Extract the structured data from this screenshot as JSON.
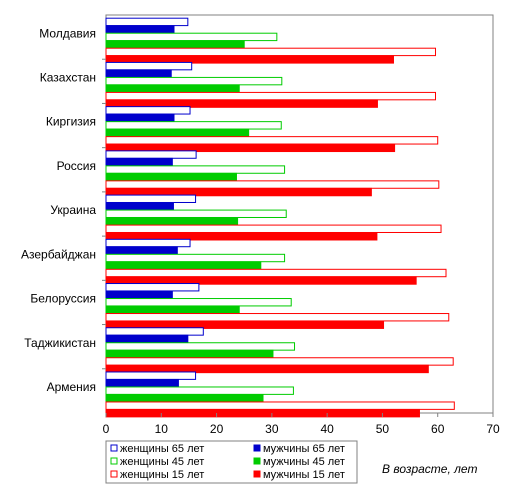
{
  "chart_data": {
    "type": "bar",
    "orientation": "horizontal",
    "categories": [
      "Молдавия",
      "Казахстан",
      "Киргизия",
      "Россия",
      "Украина",
      "Азербайджан",
      "Белоруссия",
      "Таджикистан",
      "Армения"
    ],
    "series": [
      {
        "name": "женщины 65 лет",
        "values": [
          14.8,
          15.5,
          15.2,
          16.3,
          16.2,
          15.2,
          16.8,
          17.6,
          16.2
        ],
        "color": "#0000cc",
        "filled": false
      },
      {
        "name": "мужчины 65 лет",
        "values": [
          12.3,
          11.8,
          12.3,
          12.0,
          12.2,
          12.9,
          12.0,
          14.8,
          13.1
        ],
        "color": "#0000cc",
        "filled": true
      },
      {
        "name": "женщины 45 лет",
        "values": [
          30.9,
          31.8,
          31.7,
          32.3,
          32.6,
          32.3,
          33.5,
          34.1,
          33.9
        ],
        "color": "#00cc00",
        "filled": false
      },
      {
        "name": "мужчины 45 лет",
        "values": [
          25.0,
          24.1,
          25.8,
          23.6,
          23.8,
          28.0,
          24.1,
          30.2,
          28.4
        ],
        "color": "#00cc00",
        "filled": true
      },
      {
        "name": "женщины 15 лет",
        "values": [
          59.6,
          59.6,
          60.0,
          60.2,
          60.6,
          61.5,
          62.0,
          62.8,
          63.0
        ],
        "color": "#ff0000",
        "filled": false
      },
      {
        "name": "мужчины 15 лет",
        "values": [
          52.0,
          49.1,
          52.2,
          48.0,
          49.0,
          56.1,
          50.2,
          58.3,
          56.7
        ],
        "color": "#ff0000",
        "filled": true
      }
    ],
    "xlim": [
      0,
      70
    ],
    "xticks": [
      "0",
      "10",
      "20",
      "30",
      "40",
      "50",
      "60",
      "70"
    ],
    "xlabel": "В возрасте, лет",
    "grid": false,
    "legend_position": "bottom"
  },
  "colors": {
    "blue": "#0000cc",
    "green": "#00cc00",
    "red": "#ff0000",
    "axis": "#808080"
  }
}
